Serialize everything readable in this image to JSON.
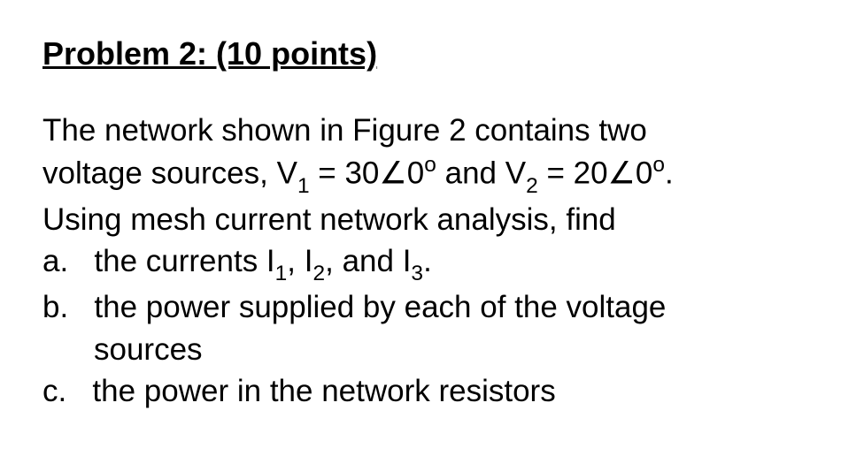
{
  "problem": {
    "title": "Problem 2: (10 points)",
    "intro_line1": "The network shown in Figure 2 contains two",
    "intro_line2_pre": "voltage sources, V",
    "intro_line2_sub1": "1",
    "intro_line2_mid1": " = 30∠0",
    "intro_line2_sup1": "o",
    "intro_line2_mid2": " and V",
    "intro_line2_sub2": "2",
    "intro_line2_mid3": " = 20∠0",
    "intro_line2_sup2": "o",
    "intro_line2_end": ".",
    "intro_line3": "Using mesh current network analysis, find",
    "item_a_label": "a.",
    "item_a_pre": "the currents I",
    "item_a_sub1": "1",
    "item_a_mid1": ", I",
    "item_a_sub2": "2",
    "item_a_mid2": ", and I",
    "item_a_sub3": "3",
    "item_a_end": ".",
    "item_b_label": "b.",
    "item_b_line1": "the power supplied by each of the voltage",
    "item_b_line2": "sources",
    "item_c_label": "c.",
    "item_c_text": "the power in the network resistors"
  },
  "style": {
    "heading_fontsize": 36,
    "body_fontsize": 35,
    "text_color": "#000000",
    "background_color": "#ffffff",
    "font_family": "Arial",
    "line_height": 1.35
  }
}
